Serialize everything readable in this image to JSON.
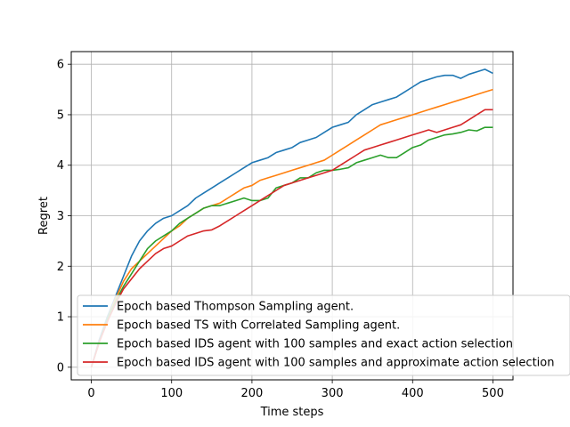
{
  "chart_data": {
    "type": "line",
    "title": "",
    "xlabel": "Time steps",
    "ylabel": "Regret",
    "xlim": [
      -25,
      525
    ],
    "ylim": [
      -0.25,
      6.25
    ],
    "xticks": [
      0,
      100,
      200,
      300,
      400,
      500
    ],
    "yticks": [
      0,
      1,
      2,
      3,
      4,
      5,
      6
    ],
    "grid": true,
    "legend_position": "bottom-right",
    "series": [
      {
        "name": "Epoch based Thompson Sampling agent.",
        "color": "#1f77b4",
        "points": [
          [
            0,
            0
          ],
          [
            10,
            0.55
          ],
          [
            20,
            1.0
          ],
          [
            30,
            1.4
          ],
          [
            40,
            1.8
          ],
          [
            50,
            2.2
          ],
          [
            60,
            2.5
          ],
          [
            70,
            2.7
          ],
          [
            80,
            2.85
          ],
          [
            90,
            2.95
          ],
          [
            100,
            3.0
          ],
          [
            110,
            3.1
          ],
          [
            120,
            3.2
          ],
          [
            130,
            3.35
          ],
          [
            140,
            3.45
          ],
          [
            150,
            3.55
          ],
          [
            160,
            3.65
          ],
          [
            170,
            3.75
          ],
          [
            180,
            3.85
          ],
          [
            190,
            3.95
          ],
          [
            200,
            4.05
          ],
          [
            210,
            4.1
          ],
          [
            220,
            4.15
          ],
          [
            230,
            4.25
          ],
          [
            240,
            4.3
          ],
          [
            250,
            4.35
          ],
          [
            260,
            4.45
          ],
          [
            270,
            4.5
          ],
          [
            280,
            4.55
          ],
          [
            290,
            4.65
          ],
          [
            300,
            4.75
          ],
          [
            310,
            4.8
          ],
          [
            320,
            4.85
          ],
          [
            330,
            5.0
          ],
          [
            340,
            5.1
          ],
          [
            350,
            5.2
          ],
          [
            360,
            5.25
          ],
          [
            370,
            5.3
          ],
          [
            380,
            5.35
          ],
          [
            390,
            5.45
          ],
          [
            400,
            5.55
          ],
          [
            410,
            5.65
          ],
          [
            420,
            5.7
          ],
          [
            430,
            5.75
          ],
          [
            440,
            5.78
          ],
          [
            450,
            5.78
          ],
          [
            460,
            5.72
          ],
          [
            470,
            5.8
          ],
          [
            480,
            5.85
          ],
          [
            490,
            5.9
          ],
          [
            500,
            5.82
          ]
        ]
      },
      {
        "name": "Epoch based TS with Correlated Sampling agent.",
        "color": "#ff7f0e",
        "points": [
          [
            0,
            0
          ],
          [
            10,
            0.5
          ],
          [
            20,
            0.95
          ],
          [
            30,
            1.35
          ],
          [
            40,
            1.7
          ],
          [
            50,
            1.95
          ],
          [
            60,
            2.1
          ],
          [
            70,
            2.25
          ],
          [
            80,
            2.4
          ],
          [
            90,
            2.55
          ],
          [
            100,
            2.7
          ],
          [
            110,
            2.8
          ],
          [
            120,
            2.95
          ],
          [
            130,
            3.05
          ],
          [
            140,
            3.15
          ],
          [
            150,
            3.2
          ],
          [
            160,
            3.25
          ],
          [
            170,
            3.35
          ],
          [
            180,
            3.45
          ],
          [
            190,
            3.55
          ],
          [
            200,
            3.6
          ],
          [
            210,
            3.7
          ],
          [
            220,
            3.75
          ],
          [
            230,
            3.8
          ],
          [
            240,
            3.85
          ],
          [
            250,
            3.9
          ],
          [
            260,
            3.95
          ],
          [
            270,
            4.0
          ],
          [
            280,
            4.05
          ],
          [
            290,
            4.1
          ],
          [
            300,
            4.2
          ],
          [
            310,
            4.3
          ],
          [
            320,
            4.4
          ],
          [
            330,
            4.5
          ],
          [
            340,
            4.6
          ],
          [
            350,
            4.7
          ],
          [
            360,
            4.8
          ],
          [
            370,
            4.85
          ],
          [
            380,
            4.9
          ],
          [
            390,
            4.95
          ],
          [
            400,
            5.0
          ],
          [
            410,
            5.05
          ],
          [
            420,
            5.1
          ],
          [
            430,
            5.15
          ],
          [
            440,
            5.2
          ],
          [
            450,
            5.25
          ],
          [
            460,
            5.3
          ],
          [
            470,
            5.35
          ],
          [
            480,
            5.4
          ],
          [
            490,
            5.45
          ],
          [
            500,
            5.5
          ]
        ]
      },
      {
        "name": "Epoch based IDS agent with 100 samples and exact action selection",
        "color": "#2ca02c",
        "points": [
          [
            0,
            0
          ],
          [
            10,
            0.5
          ],
          [
            20,
            0.95
          ],
          [
            30,
            1.3
          ],
          [
            40,
            1.6
          ],
          [
            50,
            1.85
          ],
          [
            60,
            2.1
          ],
          [
            70,
            2.35
          ],
          [
            80,
            2.5
          ],
          [
            90,
            2.6
          ],
          [
            100,
            2.7
          ],
          [
            110,
            2.85
          ],
          [
            120,
            2.95
          ],
          [
            130,
            3.05
          ],
          [
            140,
            3.15
          ],
          [
            150,
            3.2
          ],
          [
            160,
            3.2
          ],
          [
            170,
            3.25
          ],
          [
            180,
            3.3
          ],
          [
            190,
            3.35
          ],
          [
            200,
            3.3
          ],
          [
            210,
            3.3
          ],
          [
            220,
            3.35
          ],
          [
            230,
            3.55
          ],
          [
            240,
            3.6
          ],
          [
            250,
            3.65
          ],
          [
            260,
            3.75
          ],
          [
            270,
            3.75
          ],
          [
            280,
            3.85
          ],
          [
            290,
            3.9
          ],
          [
            300,
            3.9
          ],
          [
            310,
            3.92
          ],
          [
            320,
            3.95
          ],
          [
            330,
            4.05
          ],
          [
            340,
            4.1
          ],
          [
            350,
            4.15
          ],
          [
            360,
            4.2
          ],
          [
            370,
            4.15
          ],
          [
            380,
            4.15
          ],
          [
            390,
            4.25
          ],
          [
            400,
            4.35
          ],
          [
            410,
            4.4
          ],
          [
            420,
            4.5
          ],
          [
            430,
            4.55
          ],
          [
            440,
            4.6
          ],
          [
            450,
            4.62
          ],
          [
            460,
            4.65
          ],
          [
            470,
            4.7
          ],
          [
            480,
            4.68
          ],
          [
            490,
            4.75
          ],
          [
            500,
            4.75
          ]
        ]
      },
      {
        "name": "Epoch based IDS agent with 100 samples and approximate action selection",
        "color": "#d62728",
        "points": [
          [
            0,
            0
          ],
          [
            10,
            0.5
          ],
          [
            20,
            0.9
          ],
          [
            30,
            1.25
          ],
          [
            40,
            1.55
          ],
          [
            50,
            1.75
          ],
          [
            60,
            1.95
          ],
          [
            70,
            2.1
          ],
          [
            80,
            2.25
          ],
          [
            90,
            2.35
          ],
          [
            100,
            2.4
          ],
          [
            110,
            2.5
          ],
          [
            120,
            2.6
          ],
          [
            130,
            2.65
          ],
          [
            140,
            2.7
          ],
          [
            150,
            2.72
          ],
          [
            160,
            2.8
          ],
          [
            170,
            2.9
          ],
          [
            180,
            3.0
          ],
          [
            190,
            3.1
          ],
          [
            200,
            3.2
          ],
          [
            210,
            3.3
          ],
          [
            220,
            3.4
          ],
          [
            230,
            3.5
          ],
          [
            240,
            3.6
          ],
          [
            250,
            3.65
          ],
          [
            260,
            3.7
          ],
          [
            270,
            3.75
          ],
          [
            280,
            3.8
          ],
          [
            290,
            3.85
          ],
          [
            300,
            3.9
          ],
          [
            310,
            4.0
          ],
          [
            320,
            4.1
          ],
          [
            330,
            4.2
          ],
          [
            340,
            4.3
          ],
          [
            350,
            4.35
          ],
          [
            360,
            4.4
          ],
          [
            370,
            4.45
          ],
          [
            380,
            4.5
          ],
          [
            390,
            4.55
          ],
          [
            400,
            4.6
          ],
          [
            410,
            4.65
          ],
          [
            420,
            4.7
          ],
          [
            430,
            4.65
          ],
          [
            440,
            4.7
          ],
          [
            450,
            4.75
          ],
          [
            460,
            4.8
          ],
          [
            470,
            4.9
          ],
          [
            480,
            5.0
          ],
          [
            490,
            5.1
          ],
          [
            500,
            5.1
          ]
        ]
      }
    ]
  }
}
